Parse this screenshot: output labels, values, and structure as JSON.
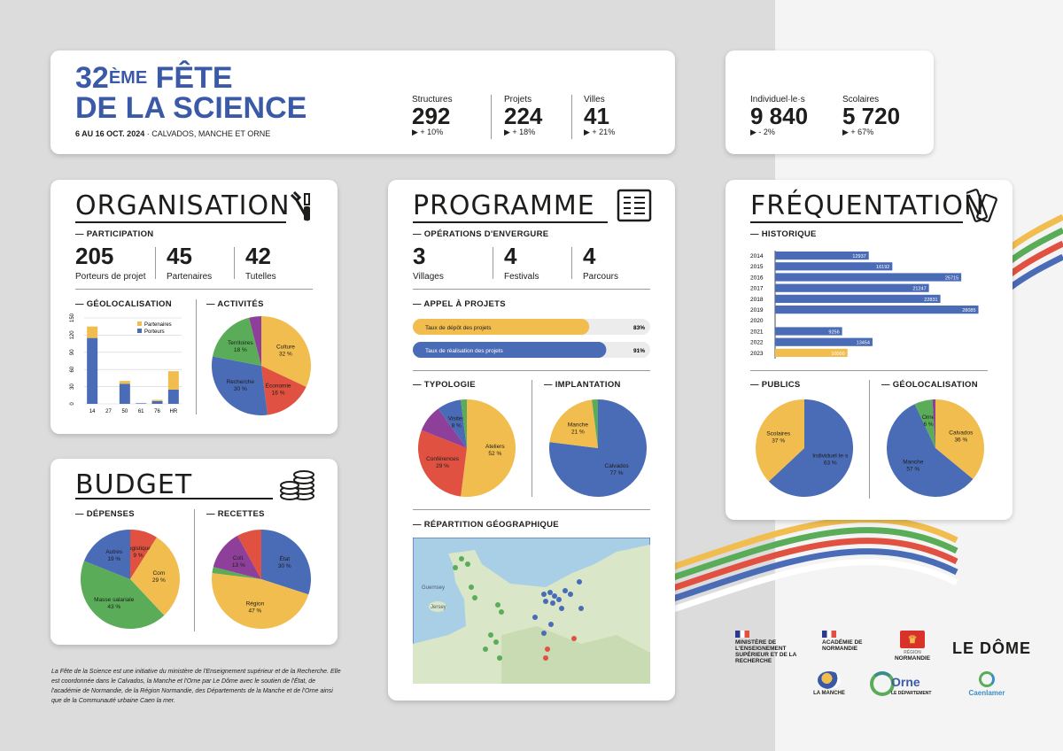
{
  "colors": {
    "blue": "#4a6bb5",
    "yellow": "#f1bd4f",
    "red": "#e05141",
    "green": "#5aac58",
    "purple": "#8e3f99",
    "title_blue": "#3a5aa8"
  },
  "header": {
    "title_number": "32",
    "title_super": "ÈME",
    "title_rest": "FÊTE",
    "title_line2": "DE LA SCIENCE",
    "dates": "6 AU 16 OCT. 2024",
    "place": " · CALVADOS, MANCHE ET ORNE",
    "stats": [
      {
        "label": "Structures",
        "value": "292",
        "delta": "▶ + 10%"
      },
      {
        "label": "Projets",
        "value": "224",
        "delta": "▶ + 18%"
      },
      {
        "label": "Villes",
        "value": "41",
        "delta": "▶ + 21%"
      }
    ],
    "stats2": [
      {
        "label": "Individuel·le·s",
        "value": "9 840",
        "delta": "▶ - 2%"
      },
      {
        "label": "Scolaires",
        "value": "5 720",
        "delta": "▶ + 67%"
      }
    ]
  },
  "organisation": {
    "title": "ORGANISATION",
    "participation_label": "— PARTICIPATION",
    "participation": [
      {
        "value": "205",
        "label": "Porteurs de projet"
      },
      {
        "value": "45",
        "label": "Partenaires"
      },
      {
        "value": "42",
        "label": "Tutelles"
      }
    ],
    "geo_label": "— GÉOLOCALISATION",
    "activites_label": "— ACTIVITÉS"
  },
  "budget": {
    "title": "BUDGET",
    "depenses_label": "— DÉPENSES",
    "recettes_label": "— RECETTES"
  },
  "programme": {
    "title": "PROGRAMME",
    "operations_label": "— OPÉRATIONS D'ENVERGURE",
    "operations": [
      {
        "value": "3",
        "label": "Villages"
      },
      {
        "value": "4",
        "label": "Festivals"
      },
      {
        "value": "4",
        "label": "Parcours"
      }
    ],
    "appel_label": "— APPEL À PROJETS",
    "typologie_label": "— TYPOLOGIE",
    "implantation_label": "— IMPLANTATION",
    "repartition_label": "— RÉPARTITION GÉOGRAPHIQUE"
  },
  "frequentation": {
    "title": "FRÉQUENTATION",
    "historique_label": "— HISTORIQUE",
    "publics_label": "— PUBLICS",
    "geo_label": "— GÉOLOCALISATION"
  },
  "map": {
    "places": [
      "Jersey",
      "Guernsey"
    ]
  },
  "footer": {
    "text": "La Fête de la Science est une initiative du ministère de l'Enseignement supérieur et de la Recherche. Elle est coordonnée dans le Calvados, la Manche et l'Orne par Le Dôme avec le soutien de l'État, de l'académie de Normandie, de la Région Normandie, des Départements de la Manche et de l'Orne ainsi que de la Communauté urbaine Caen la mer."
  },
  "logos": {
    "ministere": "MINISTÈRE DE L'ENSEIGNEMENT SUPÉRIEUR ET DE LA RECHERCHE",
    "academie": "ACADÉMIE DE NORMANDIE",
    "region": "NORMANDIE",
    "region_small": "RÉGION",
    "ledome": "LE DÔME",
    "manche": "LA MANCHE",
    "orne": "Orne",
    "orne_sub": "LE DÉPARTEMENT",
    "caen": "Caenlamer"
  },
  "chart_data": [
    {
      "id": "geolocalisation-organisation",
      "type": "bar",
      "stacked": true,
      "categories": [
        "14",
        "27",
        "50",
        "61",
        "76",
        "HR"
      ],
      "series": [
        {
          "name": "Porteurs",
          "values": [
            115,
            0,
            35,
            1,
            5,
            25
          ]
        },
        {
          "name": "Partenaires",
          "values": [
            20,
            0,
            5,
            0,
            2,
            32
          ]
        }
      ],
      "yticks": [
        "0",
        "30",
        "60",
        "90",
        "120",
        "150"
      ],
      "ylim": [
        0,
        150
      ]
    },
    {
      "id": "activites",
      "type": "pie",
      "slices": [
        {
          "label": "Culture",
          "value": 32
        },
        {
          "label": "Économie",
          "value": 16
        },
        {
          "label": "Recherche",
          "value": 30
        },
        {
          "label": "Territoires",
          "value": 18
        },
        {
          "label": "",
          "value": 4
        }
      ]
    },
    {
      "id": "depenses",
      "type": "pie",
      "slices": [
        {
          "label": "Logistique",
          "value": 9
        },
        {
          "label": "Com",
          "value": 29
        },
        {
          "label": "Masse salariale",
          "value": 43
        },
        {
          "label": "Autres",
          "value": 19
        }
      ]
    },
    {
      "id": "recettes",
      "type": "pie",
      "slices": [
        {
          "label": "État",
          "value": 30
        },
        {
          "label": "Région",
          "value": 47
        },
        {
          "label": "",
          "value": 2
        },
        {
          "label": "Coll.",
          "value": 13
        },
        {
          "label": "",
          "value": 8
        }
      ]
    },
    {
      "id": "appel-a-projets",
      "type": "bar",
      "orientation": "horizontal",
      "items": [
        {
          "label": "Taux de dépôt des projets",
          "value": 83,
          "value_label": "83%"
        },
        {
          "label": "Taux de réalisation des projets",
          "value": 91,
          "value_label": "91%"
        }
      ],
      "xlim": [
        0,
        100
      ]
    },
    {
      "id": "typologie",
      "type": "pie",
      "slices": [
        {
          "label": "Ateliers",
          "value": 52
        },
        {
          "label": "Conférences",
          "value": 29
        },
        {
          "label": "",
          "value": 9
        },
        {
          "label": "Visites",
          "value": 8
        },
        {
          "label": "",
          "value": 2
        }
      ]
    },
    {
      "id": "implantation",
      "type": "pie",
      "slices": [
        {
          "label": "Calvados",
          "value": 77
        },
        {
          "label": "Manche",
          "value": 21
        },
        {
          "label": "",
          "value": 2
        }
      ]
    },
    {
      "id": "historique",
      "type": "bar",
      "orientation": "horizontal",
      "categories": [
        "2014",
        "2015",
        "2016",
        "2017",
        "2018",
        "2019",
        "2020",
        "2021",
        "2022",
        "2023"
      ],
      "values": [
        12937,
        16192,
        25715,
        21247,
        22831,
        28085,
        null,
        9256,
        13454,
        10000
      ],
      "value_labels": [
        "12937",
        "16192",
        "25715",
        "21247",
        "22831",
        "28085",
        "",
        "9256",
        "13454",
        "10000"
      ],
      "xlim": [
        0,
        29000
      ]
    },
    {
      "id": "publics",
      "type": "pie",
      "slices": [
        {
          "label": "Individuel·le·s",
          "value": 63
        },
        {
          "label": "Scolaires",
          "value": 37
        }
      ]
    },
    {
      "id": "geolocalisation-frequentation",
      "type": "pie",
      "slices": [
        {
          "label": "Calvados",
          "value": 36
        },
        {
          "label": "Manche",
          "value": 57
        },
        {
          "label": "Orne",
          "value": 6
        },
        {
          "label": "",
          "value": 1
        }
      ]
    }
  ]
}
